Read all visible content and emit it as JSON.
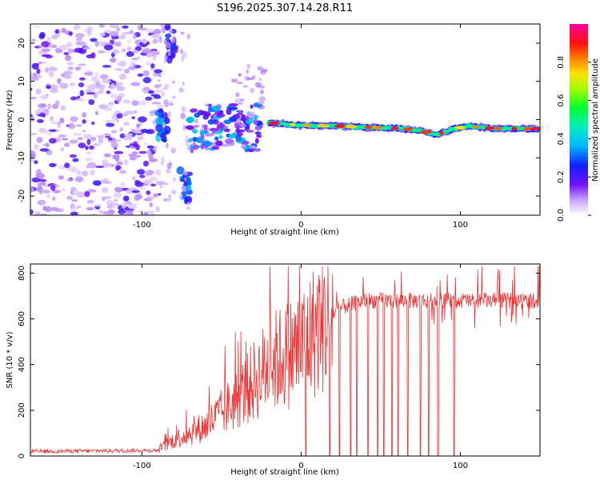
{
  "title": "S196.2025.307.14.28.R11",
  "chart_data": [
    {
      "type": "heatmap",
      "name": "spectrogram",
      "xlabel": "Height of straight line (km)",
      "ylabel": "Frequency (Hz)",
      "xlim": [
        -170,
        150
      ],
      "ylim": [
        -25,
        25
      ],
      "x_ticks": [
        -100,
        0,
        100
      ],
      "y_ticks": [
        -20,
        -10,
        0,
        10,
        20
      ],
      "colorbar": {
        "label": "Normalized spectral amplitude",
        "range": [
          0,
          1
        ],
        "ticks": [
          0.0,
          0.2,
          0.4,
          0.6,
          0.8
        ],
        "tick_labels": [
          "0.0",
          "0.2",
          "0.4",
          "0.6",
          "0.8"
        ]
      },
      "features": [
        {
          "kind": "noise",
          "x_range": [
            -170,
            -88
          ],
          "freq_range": [
            -25,
            25
          ],
          "amplitude": 0.15
        },
        {
          "kind": "blob",
          "x": -82,
          "freq": 20,
          "amplitude": 0.25
        },
        {
          "kind": "blob",
          "x": -87,
          "freq": -1,
          "amplitude": 0.35
        },
        {
          "kind": "blob",
          "x": -73,
          "freq": -17,
          "amplitude": 0.3
        },
        {
          "kind": "scatter",
          "x_range": [
            -70,
            -25
          ],
          "freq_range": [
            -8,
            4
          ],
          "amplitude": 0.35
        },
        {
          "kind": "carrier_line",
          "points": [
            [
              -20,
              -0.8
            ],
            [
              -10,
              -1.2
            ],
            [
              0,
              -1.5
            ],
            [
              20,
              -1.6
            ],
            [
              40,
              -2.0
            ],
            [
              60,
              -2.3
            ],
            [
              75,
              -2.8
            ],
            [
              85,
              -4.0
            ],
            [
              95,
              -2.5
            ],
            [
              105,
              -1.7
            ],
            [
              120,
              -2.3
            ],
            [
              148,
              -2.4
            ]
          ],
          "amplitude": 0.95
        }
      ]
    },
    {
      "type": "line",
      "name": "snr",
      "xlabel": "Height of straight line (km)",
      "ylabel": "SNR (10 * v/v)",
      "xlim": [
        -170,
        150
      ],
      "ylim": [
        0,
        840
      ],
      "x_ticks": [
        -100,
        0,
        100
      ],
      "y_ticks": [
        0,
        200,
        400,
        600,
        800
      ],
      "color": "#ee3333",
      "profile": [
        [
          -170,
          20
        ],
        [
          -90,
          25
        ],
        [
          -80,
          70
        ],
        [
          -60,
          130
        ],
        [
          -40,
          250
        ],
        [
          -20,
          400
        ],
        [
          0,
          480
        ],
        [
          10,
          560
        ],
        [
          25,
          650
        ],
        [
          40,
          680
        ],
        [
          60,
          680
        ],
        [
          100,
          680
        ],
        [
          150,
          680
        ]
      ],
      "dropouts_x": [
        3,
        18,
        24,
        31,
        35,
        42,
        48,
        52,
        57,
        61,
        67,
        75,
        80,
        86,
        96
      ]
    }
  ]
}
